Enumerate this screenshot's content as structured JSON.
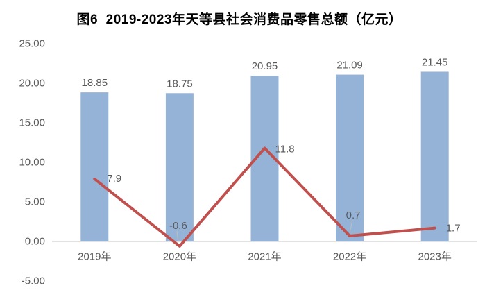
{
  "colors": {
    "bar_fill": "#95B3D7",
    "line_stroke": "#C0504D",
    "axis_line": "#D9D9D9",
    "tick_label": "#595959",
    "data_label": "#595959",
    "title_color": "#000000",
    "leader_line": "#BFBFBF",
    "background": "#FFFFFF"
  },
  "chart_data": {
    "type": "combo",
    "title": "图6  2019-2023年天等县社会消费品零售总额（亿元）",
    "categories": [
      "2019年",
      "2020年",
      "2021年",
      "2022年",
      "2023年"
    ],
    "series": [
      {
        "type": "bar",
        "values": [
          18.85,
          18.75,
          20.95,
          21.09,
          21.45
        ],
        "labels": [
          "18.85",
          "18.75",
          "20.95",
          "21.09",
          "21.45"
        ]
      },
      {
        "type": "line",
        "values": [
          7.9,
          -0.6,
          11.8,
          0.7,
          1.7
        ],
        "labels": [
          "7.9",
          "-0.6",
          "11.8",
          "0.7",
          "1.7"
        ]
      }
    ],
    "y_axis": {
      "ticks": [
        "25.00",
        "20.00",
        "15.00",
        "10.00",
        "5.00",
        "0.00",
        "-5.00"
      ],
      "tick_values": [
        25,
        20,
        15,
        10,
        5,
        0,
        -5
      ],
      "min": -5,
      "max": 25
    },
    "grid": false,
    "legend": false
  }
}
